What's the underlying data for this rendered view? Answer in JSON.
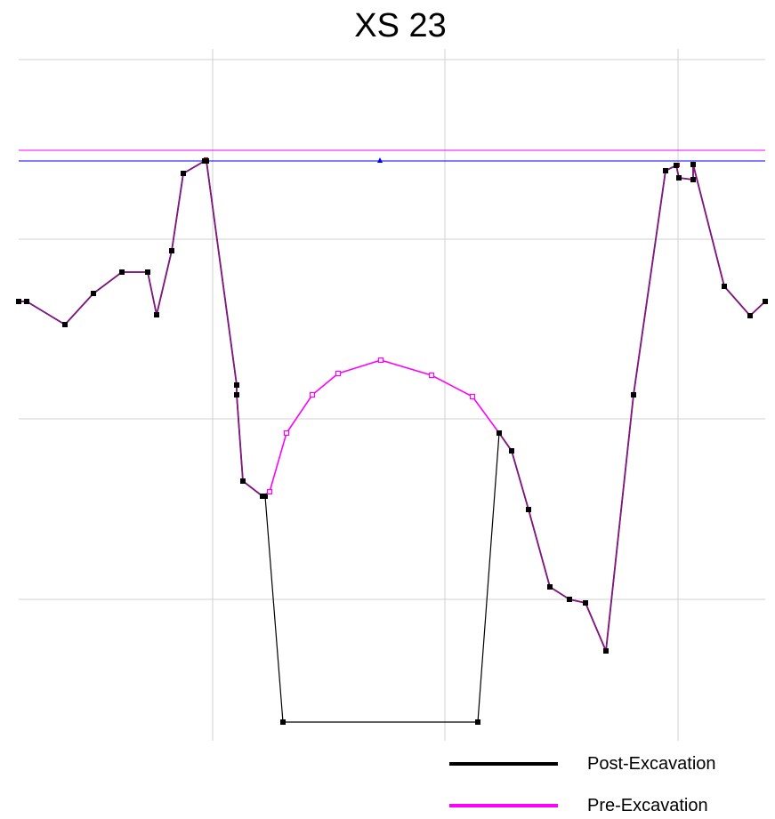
{
  "chart_data": {
    "type": "line",
    "title": "XS 23",
    "xlabel": "",
    "ylabel": "",
    "grid": true,
    "legend_position": "bottom-right",
    "reference_lines": [
      {
        "color": "#ff00ff"
      },
      {
        "color": "#0000ff"
      }
    ],
    "series": [
      {
        "name": "Post-Excavation",
        "color": "#000000",
        "points": [
          [
            21,
            339
          ],
          [
            30,
            339
          ],
          [
            73,
            365
          ],
          [
            105,
            330
          ],
          [
            137,
            306
          ],
          [
            166,
            306
          ],
          [
            176,
            354
          ],
          [
            193,
            282
          ],
          [
            206,
            195
          ],
          [
            230,
            181
          ],
          [
            232,
            181
          ],
          [
            266,
            433
          ],
          [
            266,
            444
          ],
          [
            273,
            541
          ],
          [
            295,
            558
          ],
          [
            298,
            558
          ],
          [
            318,
            812
          ],
          [
            537,
            812
          ],
          [
            561,
            487
          ],
          [
            575,
            507
          ],
          [
            594,
            573
          ],
          [
            618,
            660
          ],
          [
            640,
            674
          ],
          [
            658,
            678
          ],
          [
            681,
            732
          ],
          [
            712,
            444
          ],
          [
            748,
            192
          ],
          [
            760,
            186
          ],
          [
            763,
            200
          ],
          [
            779,
            202
          ],
          [
            779,
            185
          ],
          [
            814,
            322
          ],
          [
            843,
            355
          ],
          [
            860,
            339
          ]
        ]
      },
      {
        "name": "Pre-Excavation",
        "color": "#ff00ff",
        "points": [
          [
            21,
            339
          ],
          [
            30,
            339
          ],
          [
            73,
            365
          ],
          [
            105,
            330
          ],
          [
            137,
            306
          ],
          [
            166,
            306
          ],
          [
            176,
            354
          ],
          [
            193,
            282
          ],
          [
            206,
            195
          ],
          [
            230,
            181
          ],
          [
            232,
            181
          ],
          [
            266,
            433
          ],
          [
            266,
            444
          ],
          [
            273,
            541
          ],
          [
            295,
            558
          ],
          [
            303,
            553
          ],
          [
            322,
            487
          ],
          [
            351,
            444
          ],
          [
            380,
            420
          ],
          [
            428,
            405
          ],
          [
            485,
            422
          ],
          [
            531,
            446
          ],
          [
            561,
            487
          ],
          [
            575,
            507
          ],
          [
            594,
            573
          ],
          [
            618,
            660
          ],
          [
            640,
            674
          ],
          [
            658,
            678
          ],
          [
            681,
            732
          ],
          [
            712,
            444
          ],
          [
            748,
            192
          ],
          [
            760,
            186
          ],
          [
            763,
            200
          ],
          [
            779,
            202
          ],
          [
            779,
            185
          ],
          [
            814,
            322
          ],
          [
            843,
            355
          ],
          [
            860,
            339
          ]
        ]
      }
    ]
  },
  "legend": {
    "items": [
      {
        "label": "Post-Excavation",
        "color": "#000000"
      },
      {
        "label": "Pre-Excavation",
        "color": "#ff00ff"
      }
    ]
  }
}
